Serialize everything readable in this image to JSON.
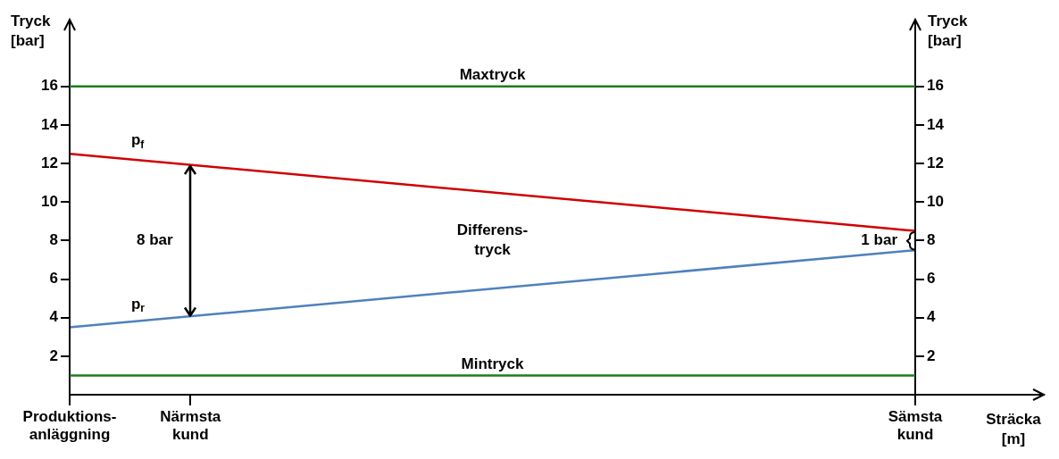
{
  "chart_data": {
    "type": "line",
    "xlabel": "Sträcka [m]",
    "ylabel": "Tryck [bar]",
    "y2label": "Tryck [bar]",
    "categories": [
      "Produktions-anläggning",
      "Närmsta kund",
      null,
      null,
      null,
      null,
      null,
      "Sämsta kund"
    ],
    "ylim": [
      0,
      19.5
    ],
    "yticks": [
      2,
      4,
      6,
      8,
      10,
      12,
      14,
      16
    ],
    "y2lim": [
      0,
      19.5
    ],
    "y2ticks": [
      2,
      4,
      6,
      8,
      10,
      12,
      14,
      16
    ],
    "series": [
      {
        "name": "p$_{f}$",
        "color": "#d00000",
        "values": [
          12.5,
          null,
          null,
          null,
          null,
          null,
          null,
          8.5
        ]
      },
      {
        "name": "p$_{r}$",
        "color": "#4f81bd",
        "values": [
          3.5,
          null,
          null,
          null,
          null,
          null,
          null,
          7.5
        ]
      }
    ],
    "ref_lines": [
      {
        "axis": "y",
        "value": 16,
        "label": "Maxtryck",
        "color": "#1e7b1e"
      },
      {
        "axis": "y",
        "value": 1,
        "label": "Mintryck",
        "color": "#1e7b1e"
      }
    ],
    "annotations": [
      "8 bar",
      "Differens-tryck",
      "1 bar"
    ],
    "grid": false,
    "legend": false,
    "marker": "none",
    "line_style": "solid"
  }
}
